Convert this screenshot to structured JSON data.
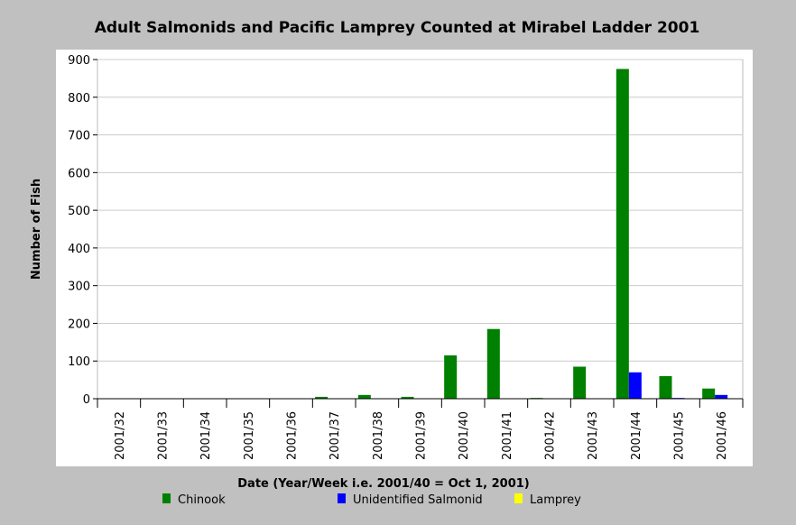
{
  "chart_data": {
    "type": "bar",
    "title": "Adult Salmonids and Pacific Lamprey Counted at Mirabel Ladder 2001",
    "xlabel": "Date (Year/Week i.e. 2001/40 = Oct 1, 2001)",
    "ylabel": "Number of Fish",
    "ylim": [
      0,
      900
    ],
    "yticks": [
      0,
      100,
      200,
      300,
      400,
      500,
      600,
      700,
      800,
      900
    ],
    "grid": true,
    "legend_position": "bottom",
    "categories": [
      "2001/32",
      "2001/33",
      "2001/34",
      "2001/35",
      "2001/36",
      "2001/37",
      "2001/38",
      "2001/39",
      "2001/40",
      "2001/41",
      "2001/42",
      "2001/43",
      "2001/44",
      "2001/45",
      "2001/46"
    ],
    "series": [
      {
        "name": "Chinook",
        "color": "#008000",
        "values": [
          0,
          0,
          0,
          0,
          0,
          5,
          10,
          5,
          115,
          185,
          2,
          85,
          875,
          60,
          27
        ]
      },
      {
        "name": "Unidentified Salmonid",
        "color": "#0000ff",
        "values": [
          0,
          0,
          0,
          0,
          0,
          0,
          0,
          0,
          0,
          0,
          0,
          0,
          70,
          2,
          10
        ]
      },
      {
        "name": "Lamprey",
        "color": "#ffff00",
        "values": [
          0,
          0,
          0,
          0,
          0,
          0,
          0,
          0,
          0,
          0,
          0,
          0,
          0,
          0,
          0
        ]
      }
    ]
  }
}
